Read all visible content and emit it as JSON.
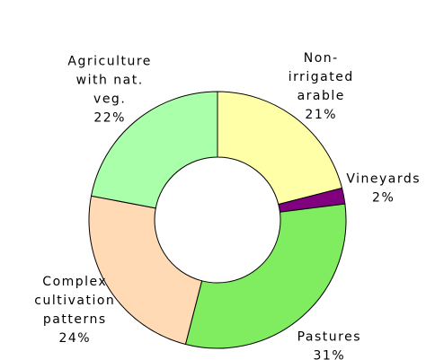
{
  "chart_data": {
    "type": "pie",
    "categories": [
      "Non-irrigated arable",
      "Vineyards",
      "Pastures",
      "Complex cultivation patterns",
      "Agriculture with nat. veg."
    ],
    "values": [
      21,
      2,
      31,
      24,
      22
    ],
    "value_labels": [
      "21%",
      "2%",
      "31%",
      "24%",
      "22%"
    ],
    "colors": [
      "#ffffa8",
      "#800080",
      "#80ec60",
      "#ffdab4",
      "#aaffaa"
    ],
    "donut": true
  }
}
